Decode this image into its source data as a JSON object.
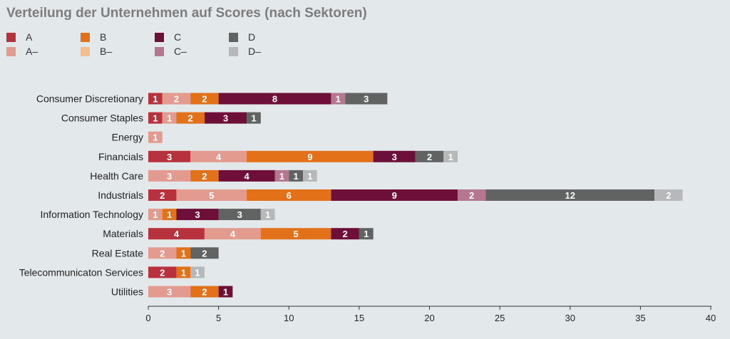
{
  "chart_data": {
    "type": "bar",
    "orientation": "horizontal",
    "stacked": true,
    "title": "Verteilung der Unternehmen auf Scores (nach Sektoren)",
    "xlabel": "",
    "ylabel": "",
    "xlim": [
      0,
      40
    ],
    "xticks": [
      0,
      5,
      10,
      15,
      20,
      25,
      30,
      35,
      40
    ],
    "grid": false,
    "legend_position": "top-left",
    "categories": [
      "Consumer Discretionary",
      "Consumer Staples",
      "Energy",
      "Financials",
      "Health Care",
      "Industrials",
      "Information Technology",
      "Materials",
      "Real Estate",
      "Telecommunicaton Services",
      "Utilities"
    ],
    "series": [
      {
        "name": "A",
        "color": "#b8323e",
        "values": [
          1,
          1,
          0,
          3,
          0,
          2,
          0,
          4,
          0,
          2,
          0
        ]
      },
      {
        "name": "A–",
        "color": "#e39a8f",
        "values": [
          2,
          1,
          1,
          4,
          3,
          5,
          1,
          4,
          2,
          0,
          3
        ]
      },
      {
        "name": "B",
        "color": "#e2711a",
        "values": [
          2,
          2,
          0,
          9,
          2,
          6,
          1,
          5,
          1,
          1,
          2
        ]
      },
      {
        "name": "B–",
        "color": "#f3be8c",
        "values": [
          0,
          0,
          0,
          0,
          0,
          0,
          0,
          0,
          0,
          0,
          0
        ]
      },
      {
        "name": "C",
        "color": "#6d0f38",
        "values": [
          8,
          3,
          0,
          3,
          4,
          9,
          3,
          2,
          0,
          0,
          1
        ]
      },
      {
        "name": "C–",
        "color": "#b5768f",
        "values": [
          1,
          0,
          0,
          0,
          1,
          2,
          0,
          0,
          0,
          0,
          0
        ]
      },
      {
        "name": "D",
        "color": "#616262",
        "values": [
          3,
          1,
          0,
          2,
          1,
          12,
          3,
          1,
          2,
          0,
          0
        ]
      },
      {
        "name": "D–",
        "color": "#b7b8b9",
        "values": [
          0,
          0,
          0,
          1,
          1,
          2,
          1,
          0,
          0,
          1,
          0
        ]
      }
    ]
  }
}
